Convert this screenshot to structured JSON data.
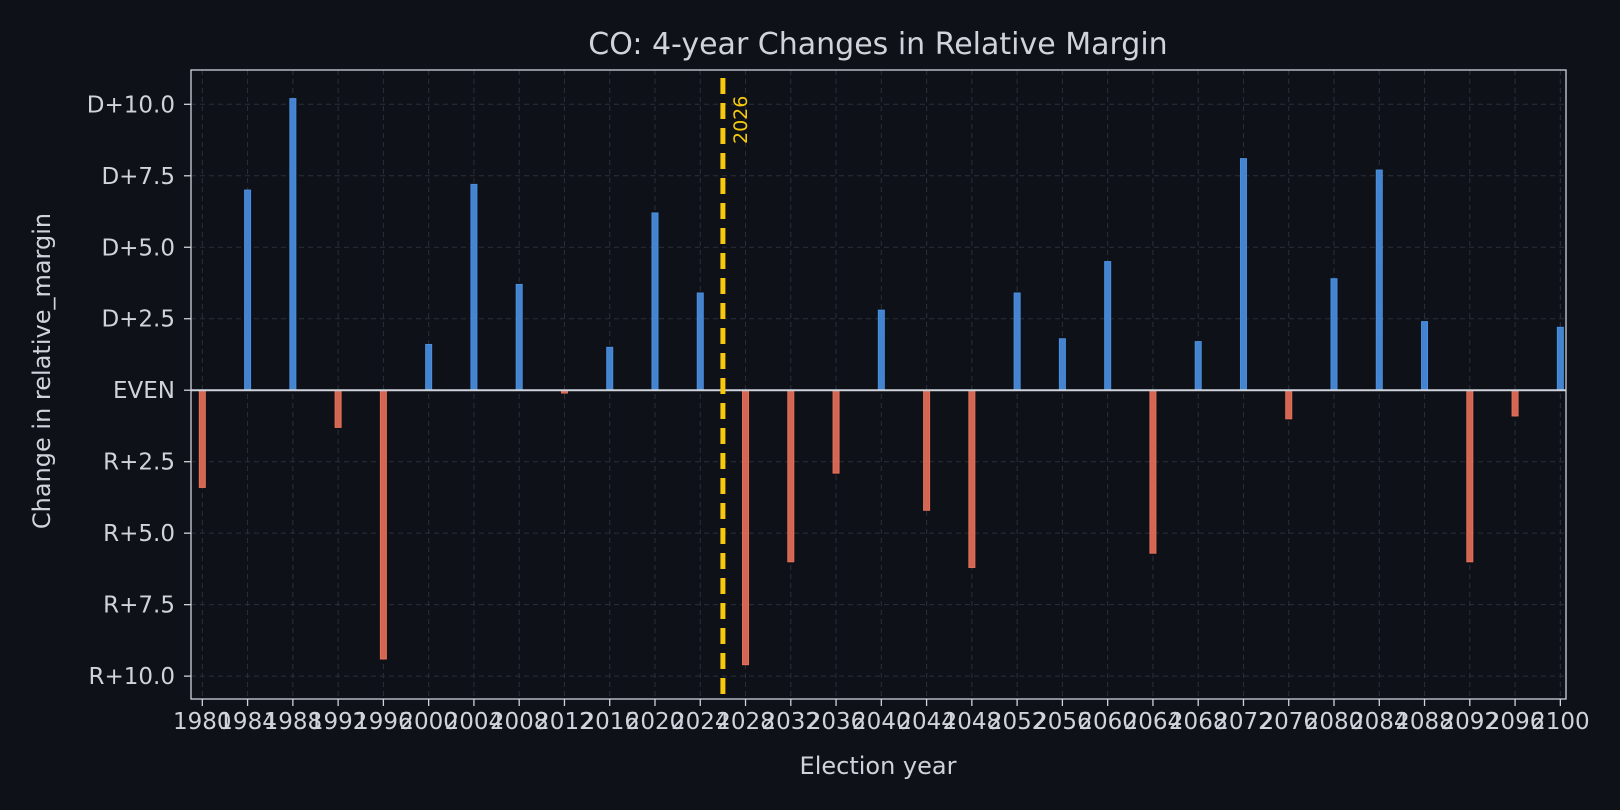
{
  "chart_data": {
    "type": "bar",
    "title": "CO: 4-year Changes in Relative Margin",
    "xlabel": "Election year",
    "ylabel": "Change in relative_margin",
    "ylim": [
      -10.8,
      11.2
    ],
    "xlim": [
      1979,
      2100.5
    ],
    "grid": true,
    "y_ticks": [
      {
        "value": 10,
        "label": "D+10.0"
      },
      {
        "value": 7.5,
        "label": "D+7.5"
      },
      {
        "value": 5,
        "label": "D+5.0"
      },
      {
        "value": 2.5,
        "label": "D+2.5"
      },
      {
        "value": 0,
        "label": "EVEN"
      },
      {
        "value": -2.5,
        "label": "R+2.5"
      },
      {
        "value": -5,
        "label": "R+5.0"
      },
      {
        "value": -7.5,
        "label": "R+7.5"
      },
      {
        "value": -10,
        "label": "R+10.0"
      }
    ],
    "x_ticks": [
      1980,
      1984,
      1988,
      1992,
      1996,
      2000,
      2004,
      2008,
      2012,
      2016,
      2020,
      2024,
      2028,
      2032,
      2036,
      2040,
      2044,
      2048,
      2052,
      2056,
      2060,
      2064,
      2068,
      2072,
      2076,
      2080,
      2084,
      2088,
      2092,
      2096,
      2100
    ],
    "x": [
      1980,
      1984,
      1988,
      1992,
      1996,
      2000,
      2004,
      2008,
      2012,
      2016,
      2020,
      2024,
      2028,
      2032,
      2036,
      2040,
      2044,
      2048,
      2052,
      2056,
      2060,
      2064,
      2068,
      2072,
      2076,
      2080,
      2084,
      2088,
      2092,
      2096,
      2100
    ],
    "values": [
      -3.4,
      7.0,
      10.2,
      -1.3,
      -9.4,
      1.6,
      7.2,
      3.7,
      -0.1,
      1.5,
      6.2,
      3.4,
      -9.6,
      -6.0,
      -2.9,
      2.8,
      -4.2,
      -6.2,
      3.4,
      1.8,
      4.5,
      -5.7,
      1.7,
      8.1,
      -1.0,
      3.9,
      7.7,
      2.4,
      -6.0,
      -0.9,
      2.2
    ],
    "colors": {
      "positive": "#4a90e2",
      "negative": "#e8705a",
      "marker": "#f6c90e",
      "axis": "#cfd3da",
      "background": "#0e1118"
    },
    "marker": {
      "x": 2026,
      "label": "2026"
    }
  }
}
